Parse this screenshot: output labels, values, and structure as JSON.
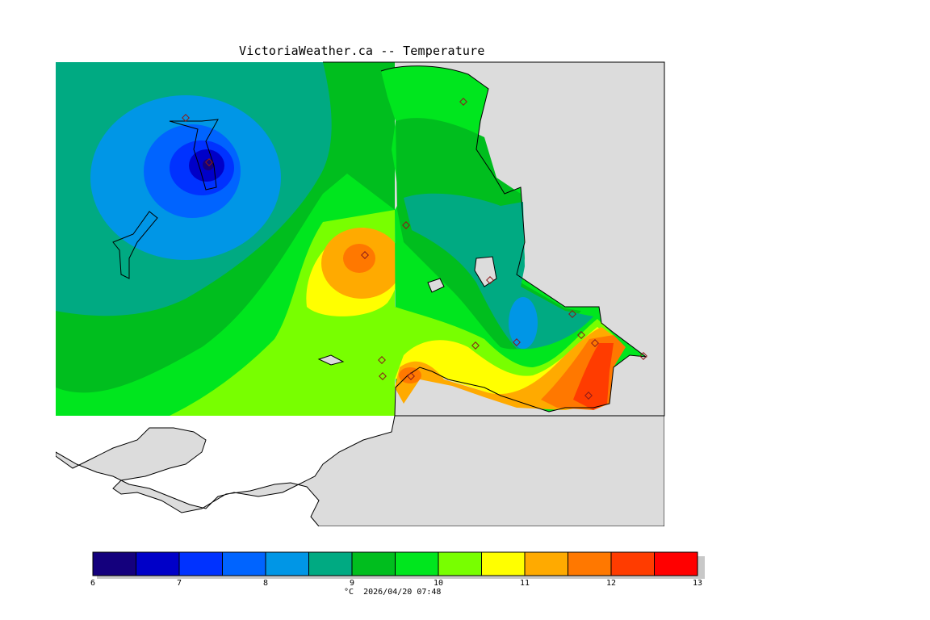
{
  "title": "VictoriaWeather.ca -- Temperature",
  "colors": {
    "land_gray": "#dcdcdc",
    "outside_white": "#ffffff",
    "bins": [
      "#14007d",
      "#0000c8",
      "#0032ff",
      "#0064ff",
      "#0096e6",
      "#00aa82",
      "#00be1e",
      "#00e61e",
      "#78ff00",
      "#ffff00",
      "#ffaa00",
      "#ff7800",
      "#ff3c00",
      "#ff0000"
    ]
  },
  "colorbar": {
    "min": 6,
    "max": 13,
    "step": 0.5,
    "tick_labels": [
      "6",
      "7",
      "8",
      "9",
      "10",
      "11",
      "12",
      "13"
    ]
  },
  "footer": {
    "unit": "°C",
    "timestamp": "2026/04/20 07:48"
  }
}
